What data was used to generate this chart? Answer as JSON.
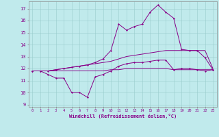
{
  "xlabel": "Windchill (Refroidissement éolien,°C)",
  "x_ticks": [
    0,
    1,
    2,
    3,
    4,
    5,
    6,
    7,
    8,
    9,
    10,
    11,
    12,
    13,
    14,
    15,
    16,
    17,
    18,
    19,
    20,
    21,
    22,
    23
  ],
  "ylim": [
    8.8,
    17.6
  ],
  "yticks": [
    9,
    10,
    11,
    12,
    13,
    14,
    15,
    16,
    17
  ],
  "xlim": [
    -0.5,
    23.5
  ],
  "bg_color": "#c0eaec",
  "line_color": "#880088",
  "grid_color": "#99cccc",
  "line1_y": [
    11.8,
    11.8,
    11.5,
    11.2,
    11.2,
    10.0,
    10.0,
    9.6,
    11.3,
    11.5,
    11.8,
    12.2,
    12.4,
    12.5,
    12.5,
    12.6,
    12.7,
    12.7,
    11.9,
    12.0,
    12.0,
    11.9,
    11.8,
    11.9
  ],
  "line2_y": [
    11.8,
    11.8,
    11.8,
    11.8,
    11.8,
    11.8,
    11.8,
    11.8,
    11.8,
    11.8,
    11.9,
    11.9,
    12.0,
    12.0,
    12.0,
    12.0,
    12.0,
    12.0,
    11.9,
    11.9,
    11.9,
    11.9,
    11.9,
    11.9
  ],
  "line3_y": [
    11.8,
    11.8,
    11.8,
    11.9,
    12.0,
    12.1,
    12.2,
    12.3,
    12.4,
    12.5,
    12.6,
    12.8,
    13.0,
    13.1,
    13.2,
    13.3,
    13.4,
    13.5,
    13.5,
    13.5,
    13.5,
    13.5,
    13.5,
    12.0
  ],
  "line4_y": [
    11.8,
    11.8,
    11.8,
    11.9,
    12.0,
    12.1,
    12.2,
    12.3,
    12.5,
    12.8,
    13.5,
    15.7,
    15.2,
    15.5,
    15.7,
    16.7,
    17.3,
    16.7,
    16.2,
    13.6,
    13.5,
    13.5,
    12.9,
    11.9
  ]
}
